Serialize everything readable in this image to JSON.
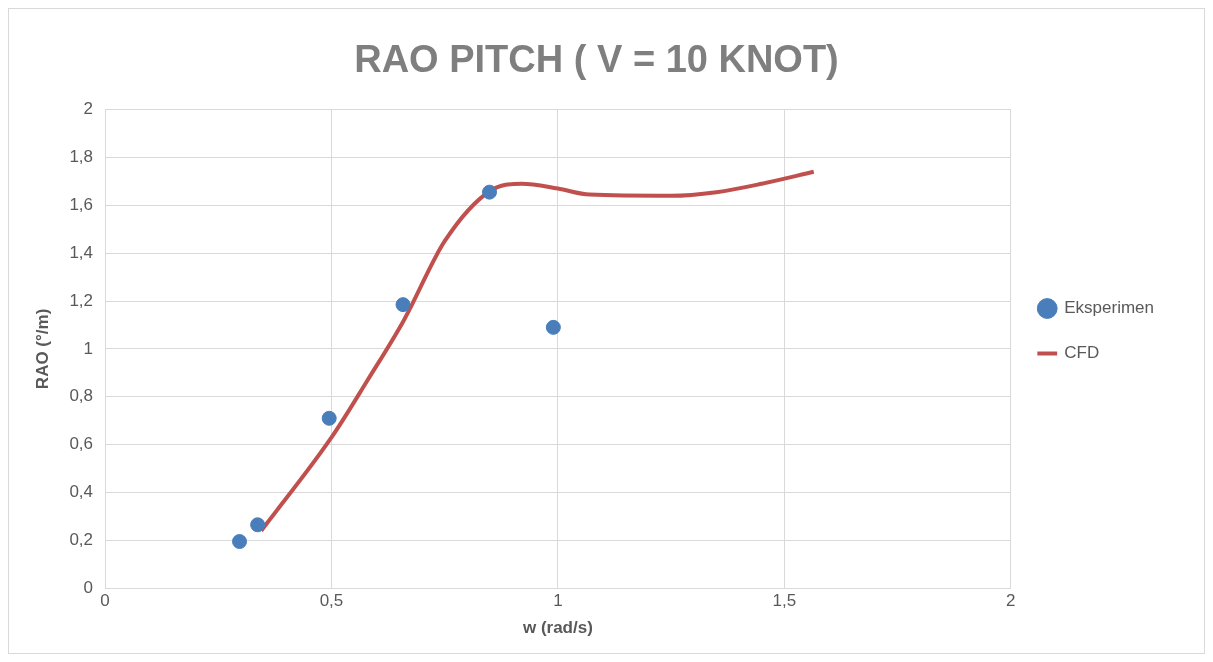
{
  "chart_data": {
    "type": "scatter",
    "title": "RAO PITCH ( V = 10 KNOT)",
    "xlabel": "w (rad/s)",
    "ylabel": "RAO (°/m)",
    "xlim": [
      0,
      2
    ],
    "xticks": [
      0,
      {
        "value": 0.5,
        "label": "0,5"
      },
      1,
      {
        "value": 1.5,
        "label": "1,5"
      },
      2
    ],
    "ylim": [
      0,
      2
    ],
    "yticks": [
      0,
      {
        "value": 0.2,
        "label": "0,2"
      },
      {
        "value": 0.4,
        "label": "0,4"
      },
      {
        "value": 0.6,
        "label": "0,6"
      },
      {
        "value": 0.8,
        "label": "0,8"
      },
      1,
      {
        "value": 1.2,
        "label": "1,2"
      },
      {
        "value": 1.4,
        "label": "1,4"
      },
      {
        "value": 1.6,
        "label": "1,6"
      },
      {
        "value": 1.8,
        "label": "1,8"
      },
      2
    ],
    "grid": true,
    "legend": "right",
    "series": [
      {
        "name": "Eksperimen",
        "type": "scatter",
        "color": "#4a7ebb",
        "marker": "circle",
        "x": [
          0.297,
          0.337,
          0.495,
          0.658,
          0.849,
          0.99
        ],
        "values": [
          0.195,
          0.265,
          0.71,
          1.185,
          1.655,
          1.09
        ]
      },
      {
        "name": "CFD",
        "type": "line",
        "color": "#c0504d",
        "marker": "none",
        "line_style": "solid",
        "x": [
          0.345,
          0.5,
          0.58,
          0.66,
          0.75,
          0.85,
          0.92,
          1.0,
          1.07,
          1.25,
          1.35,
          1.45,
          1.565
        ],
        "values": [
          0.24,
          0.63,
          0.87,
          1.12,
          1.45,
          1.66,
          1.69,
          1.67,
          1.645,
          1.64,
          1.655,
          1.69,
          1.74
        ]
      }
    ]
  }
}
